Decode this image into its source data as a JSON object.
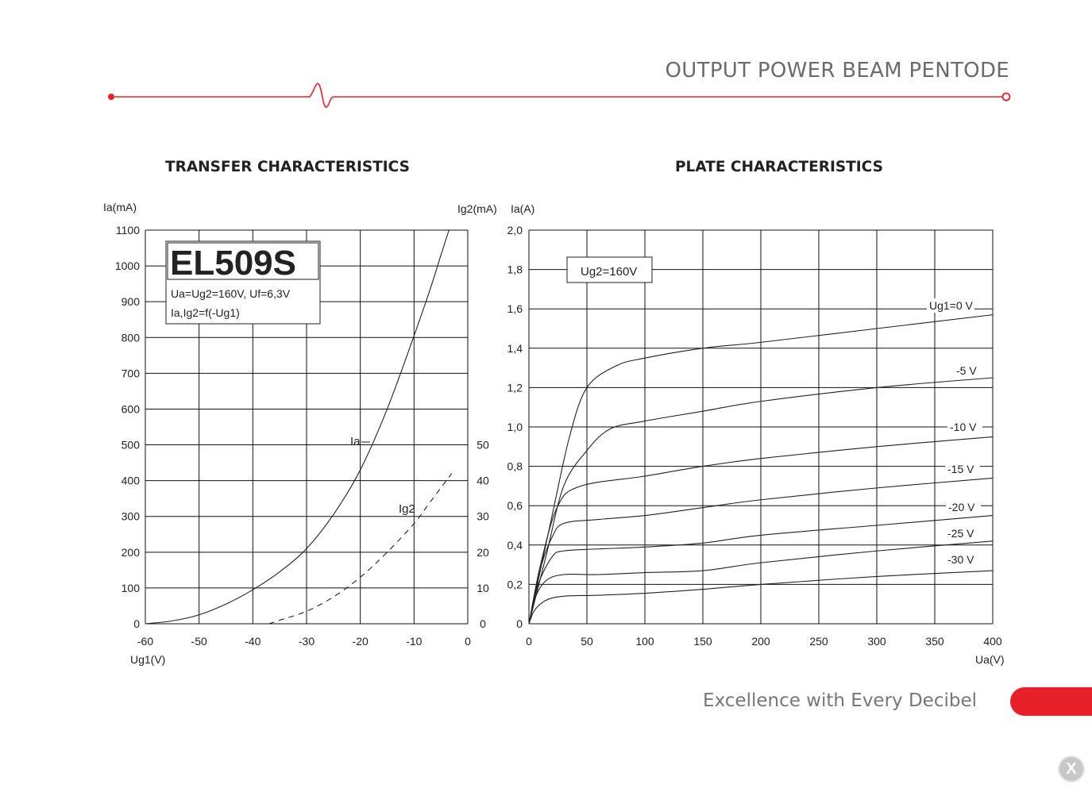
{
  "header": {
    "title": "OUTPUT POWER BEAM PENTODE"
  },
  "footer": {
    "tagline": "Excellence with Every Decibel",
    "close_label": "X"
  },
  "colors": {
    "accent": "#e8202a",
    "grid": "#111111",
    "curve": "#222222"
  },
  "chart_data": [
    {
      "type": "line",
      "title": "TRANSFER CHARACTERISTICS",
      "ylabel": "Ia(mA)",
      "ylabel_right": "Ig2(mA)",
      "xlabel": "Ug1(V)",
      "xlim": [
        -60,
        0
      ],
      "ylim": [
        0,
        1100
      ],
      "ylim_right": [
        0,
        110
      ],
      "x_ticks": [
        "-60",
        "-50",
        "-40",
        "-30",
        "-20",
        "-10",
        "0"
      ],
      "y_ticks": [
        "0",
        "100",
        "200",
        "300",
        "400",
        "500",
        "600",
        "700",
        "800",
        "900",
        "1000",
        "1100"
      ],
      "y_ticks_right": [
        "0",
        "10",
        "20",
        "30",
        "40",
        "50"
      ],
      "grid": true,
      "legend_box": {
        "tube": "EL509S",
        "conditions": "Ua=Ug2=160V, Uf=6,3V",
        "function": "Ia,Ig2=f(-Ug1)"
      },
      "series": [
        {
          "name": "Ia",
          "axis": "left",
          "style": "solid",
          "points": [
            [
              -60,
              0
            ],
            [
              -55,
              8
            ],
            [
              -50,
              25
            ],
            [
              -45,
              55
            ],
            [
              -40,
              95
            ],
            [
              -35,
              145
            ],
            [
              -30,
              210
            ],
            [
              -25,
              305
            ],
            [
              -20,
              430
            ],
            [
              -15,
              600
            ],
            [
              -10,
              805
            ],
            [
              -7,
              935
            ],
            [
              -5,
              1030
            ],
            [
              -3.5,
              1100
            ]
          ]
        },
        {
          "name": "Ig2",
          "axis": "right",
          "style": "dashed",
          "points": [
            [
              -37,
              0
            ],
            [
              -35,
              1
            ],
            [
              -30,
              3.5
            ],
            [
              -25,
              7.5
            ],
            [
              -20,
              13
            ],
            [
              -15,
              20
            ],
            [
              -10,
              28
            ],
            [
              -7,
              34
            ],
            [
              -3,
              42
            ]
          ]
        }
      ]
    },
    {
      "type": "line",
      "title": "PLATE CHARACTERISTICS",
      "ylabel": "Ia(A)",
      "xlabel": "Ua(V)",
      "xlim": [
        0,
        400
      ],
      "ylim": [
        0,
        2.0
      ],
      "x_ticks": [
        "0",
        "50",
        "100",
        "150",
        "200",
        "250",
        "300",
        "350",
        "400"
      ],
      "y_ticks": [
        "0",
        "0,2",
        "0,4",
        "0,6",
        "0,8",
        "1,0",
        "1,2",
        "1,4",
        "1,6",
        "1,8",
        "2,0"
      ],
      "grid": true,
      "annotation": "Ug2=160V",
      "series": [
        {
          "name": "Ug1=0 V",
          "points": [
            [
              0,
              0
            ],
            [
              20,
              0.55
            ],
            [
              35,
              0.95
            ],
            [
              50,
              1.2
            ],
            [
              75,
              1.31
            ],
            [
              100,
              1.35
            ],
            [
              150,
              1.4
            ],
            [
              200,
              1.43
            ],
            [
              300,
              1.5
            ],
            [
              400,
              1.57
            ]
          ]
        },
        {
          "name": "-5 V",
          "points": [
            [
              0,
              0
            ],
            [
              15,
              0.35
            ],
            [
              30,
              0.7
            ],
            [
              50,
              0.88
            ],
            [
              70,
              0.99
            ],
            [
              100,
              1.03
            ],
            [
              150,
              1.08
            ],
            [
              200,
              1.13
            ],
            [
              300,
              1.2
            ],
            [
              400,
              1.25
            ]
          ]
        },
        {
          "name": "-10 V",
          "points": [
            [
              0,
              0
            ],
            [
              10,
              0.3
            ],
            [
              25,
              0.6
            ],
            [
              45,
              0.7
            ],
            [
              100,
              0.75
            ],
            [
              150,
              0.8
            ],
            [
              200,
              0.84
            ],
            [
              300,
              0.9
            ],
            [
              400,
              0.95
            ]
          ]
        },
        {
          "name": "-15 V",
          "points": [
            [
              0,
              0
            ],
            [
              10,
              0.28
            ],
            [
              20,
              0.44
            ],
            [
              30,
              0.51
            ],
            [
              60,
              0.53
            ],
            [
              100,
              0.55
            ],
            [
              150,
              0.59
            ],
            [
              200,
              0.63
            ],
            [
              300,
              0.69
            ],
            [
              400,
              0.74
            ]
          ]
        },
        {
          "name": "-20 V",
          "points": [
            [
              0,
              0
            ],
            [
              8,
              0.2
            ],
            [
              20,
              0.34
            ],
            [
              30,
              0.37
            ],
            [
              60,
              0.38
            ],
            [
              100,
              0.39
            ],
            [
              150,
              0.41
            ],
            [
              200,
              0.45
            ],
            [
              300,
              0.5
            ],
            [
              400,
              0.55
            ]
          ]
        },
        {
          "name": "-25 V",
          "points": [
            [
              0,
              0
            ],
            [
              6,
              0.14
            ],
            [
              15,
              0.22
            ],
            [
              30,
              0.25
            ],
            [
              60,
              0.25
            ],
            [
              100,
              0.26
            ],
            [
              150,
              0.27
            ],
            [
              200,
              0.31
            ],
            [
              300,
              0.37
            ],
            [
              400,
              0.42
            ]
          ]
        },
        {
          "name": "-30 V",
          "points": [
            [
              0,
              0
            ],
            [
              5,
              0.07
            ],
            [
              15,
              0.12
            ],
            [
              30,
              0.14
            ],
            [
              60,
              0.145
            ],
            [
              100,
              0.155
            ],
            [
              150,
              0.175
            ],
            [
              200,
              0.2
            ],
            [
              300,
              0.24
            ],
            [
              400,
              0.27
            ]
          ]
        }
      ]
    }
  ]
}
